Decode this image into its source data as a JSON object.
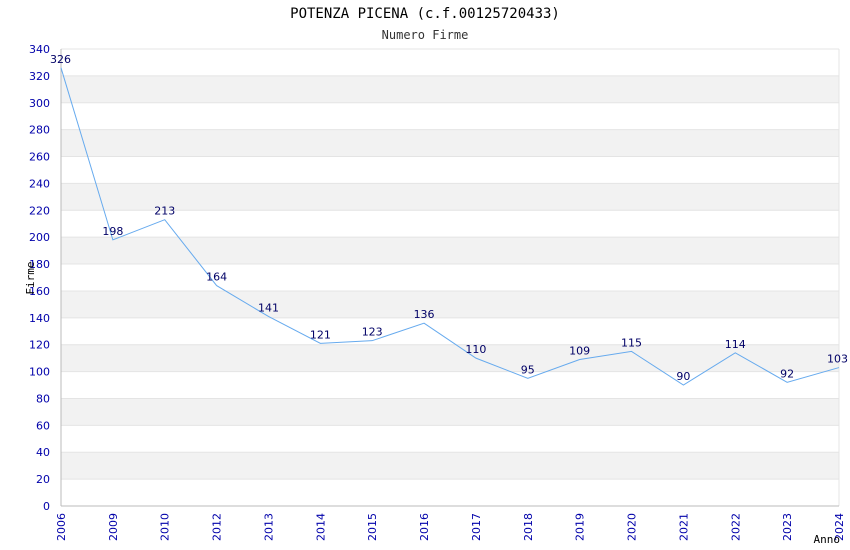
{
  "chart_data": {
    "type": "line",
    "title": "POTENZA PICENA (c.f.00125720433)",
    "subtitle": "Numero Firme",
    "xlabel": "Anno",
    "ylabel": "Firme",
    "categories": [
      "2006",
      "2009",
      "2010",
      "2012",
      "2013",
      "2014",
      "2015",
      "2016",
      "2017",
      "2018",
      "2019",
      "2020",
      "2021",
      "2022",
      "2023",
      "2024"
    ],
    "series": [
      {
        "values": [
          326,
          198,
          213,
          164,
          141,
          121,
          123,
          136,
          110,
          95,
          109,
          115,
          90,
          114,
          92,
          103
        ]
      }
    ],
    "ylim": [
      0,
      340
    ],
    "yticks": [
      0,
      20,
      40,
      60,
      80,
      100,
      120,
      140,
      160,
      180,
      200,
      220,
      240,
      260,
      280,
      300,
      320,
      340
    ],
    "grid": true,
    "colors": {
      "line": "#66aaee",
      "band": "#f2f2f2",
      "tick_text": "#0000aa",
      "label_text": "#000066"
    }
  }
}
